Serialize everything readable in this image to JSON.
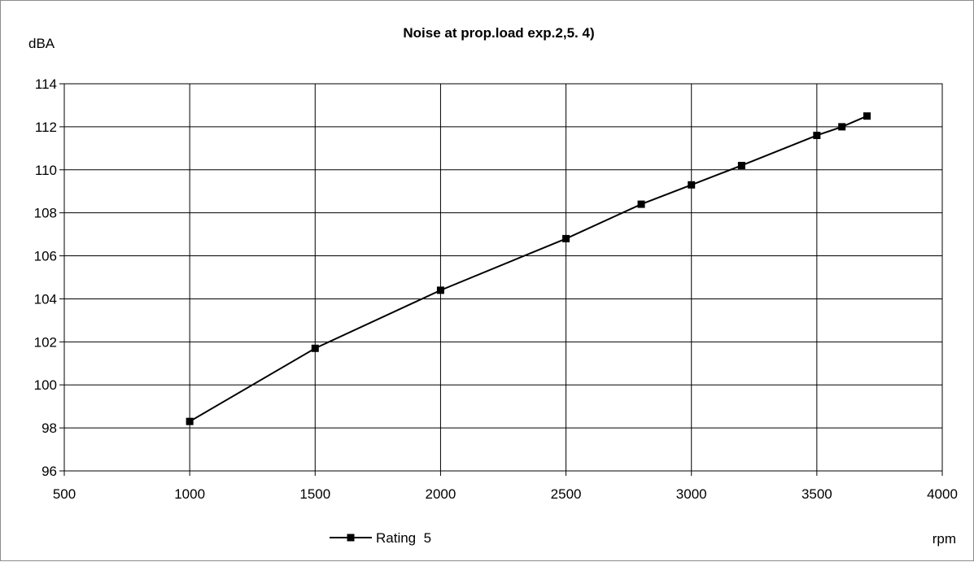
{
  "chart_data": {
    "type": "line",
    "title": "Noise at prop.load exp.2,5. 4)",
    "ylabel": "dBA",
    "xlabel": "rpm",
    "xlim": [
      500,
      4000
    ],
    "ylim": [
      96,
      114
    ],
    "x_ticks": [
      500,
      1000,
      1500,
      2000,
      2500,
      3000,
      3500,
      4000
    ],
    "y_ticks": [
      96,
      98,
      100,
      102,
      104,
      106,
      108,
      110,
      112,
      114
    ],
    "grid": true,
    "legend": "bottom-center",
    "series": [
      {
        "name": "Rating  5",
        "color": "#000000",
        "marker": "square",
        "x": [
          1000,
          1500,
          2000,
          2500,
          2800,
          3000,
          3200,
          3500,
          3600,
          3700
        ],
        "y": [
          98.3,
          101.7,
          104.4,
          106.8,
          108.4,
          109.3,
          110.2,
          111.6,
          112.0,
          112.5
        ]
      }
    ]
  }
}
